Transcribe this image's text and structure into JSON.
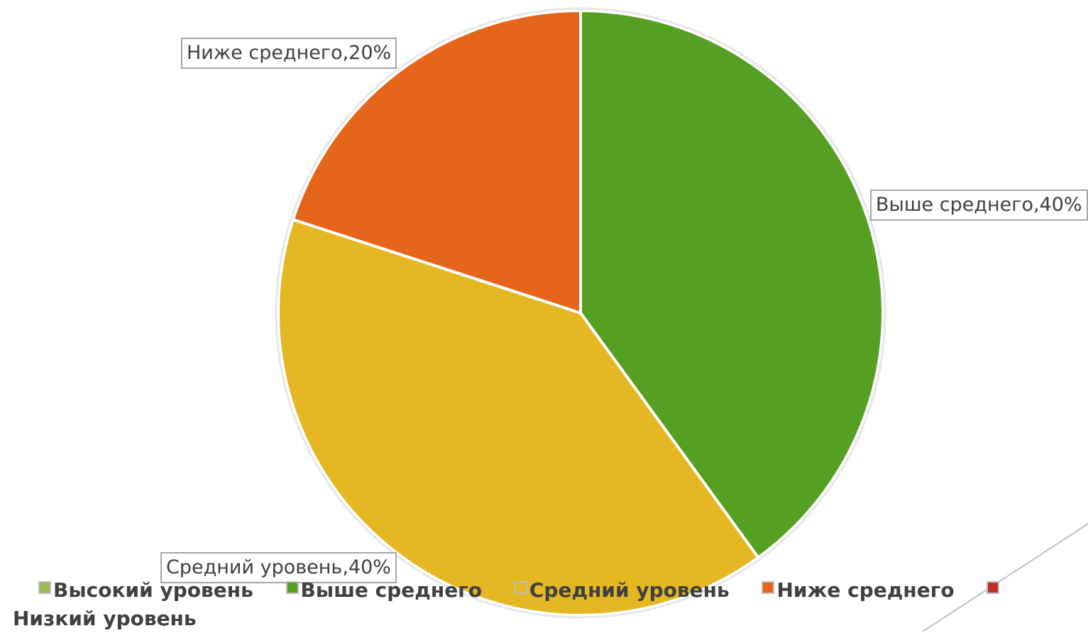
{
  "chart_data": {
    "type": "pie",
    "title": "",
    "categories": [
      "Высокий уровень",
      "Выше среднего",
      "Средний уровень",
      "Ниже среднего",
      "Низкий уровень"
    ],
    "values": [
      0,
      40,
      40,
      20,
      0
    ],
    "colors": [
      "#9bbb59",
      "#55a022",
      "#e5b823",
      "#e5651a",
      "#c0302c"
    ],
    "data_labels": [
      {
        "category_index": 1,
        "text": "Выше среднего,40%"
      },
      {
        "category_index": 2,
        "text": "Средний уровень,40%"
      },
      {
        "category_index": 3,
        "text": "Ниже среднего,20%"
      }
    ],
    "legend": {
      "placement": "bottom",
      "items": [
        "Высокий уровень",
        "Выше среднего",
        "Средний уровень",
        "Ниже среднего",
        "Низкий уровень"
      ]
    },
    "start_angle_deg": 0,
    "direction": "clockwise"
  }
}
